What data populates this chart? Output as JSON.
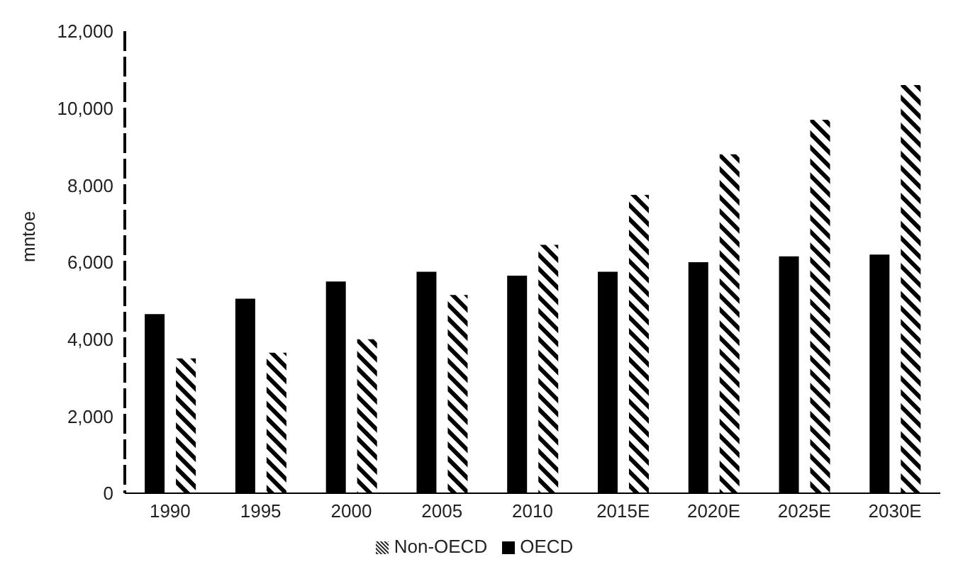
{
  "chart_data": {
    "type": "bar",
    "ylabel": "mntoe",
    "categories": [
      "1990",
      "1995",
      "2000",
      "2005",
      "2010",
      "2015E",
      "2020E",
      "2025E",
      "2030E"
    ],
    "series": [
      {
        "name": "OECD",
        "color": "#000000",
        "values": [
          4650,
          5050,
          5500,
          5750,
          5650,
          5750,
          6000,
          6150,
          6200
        ]
      },
      {
        "name": "Non-OECD",
        "color": "#000000",
        "values": [
          3500,
          3650,
          4000,
          5150,
          6450,
          7750,
          8800,
          9700,
          10600
        ]
      }
    ],
    "ylim": [
      0,
      12000
    ],
    "yticks": [
      {
        "value": 0,
        "label": "0"
      },
      {
        "value": 2000,
        "label": "2,000"
      },
      {
        "value": 4000,
        "label": "4,000"
      },
      {
        "value": 6000,
        "label": "6,000"
      },
      {
        "value": 8000,
        "label": "8,000"
      },
      {
        "value": 10000,
        "label": "10,000"
      },
      {
        "value": 12000,
        "label": "12,000"
      }
    ],
    "grid": false,
    "legend": "bottom"
  }
}
